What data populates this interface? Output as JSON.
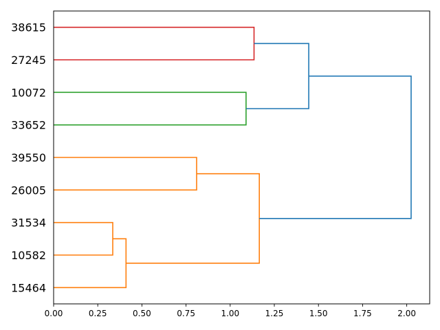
{
  "chart_data": {
    "type": "dendrogram",
    "orientation": "horizontal",
    "title": "",
    "xlabel": "",
    "ylabel": "",
    "xlim": [
      0,
      2.13
    ],
    "xticks": [
      "0.00",
      "0.25",
      "0.50",
      "0.75",
      "1.00",
      "1.25",
      "1.50",
      "1.75",
      "2.00"
    ],
    "grid": false,
    "leaves": [
      "38615",
      "27245",
      "10072",
      "33652",
      "39550",
      "26005",
      "31534",
      "10582",
      "15464"
    ],
    "merges": [
      {
        "left": "31534",
        "right": "10582",
        "distance": 0.335,
        "color": "#ff7f0e"
      },
      {
        "left": "31534+10582",
        "right": "15464",
        "distance": 0.41,
        "color": "#ff7f0e"
      },
      {
        "left": "39550",
        "right": "26005",
        "distance": 0.81,
        "color": "#ff7f0e"
      },
      {
        "left": "39550+26005",
        "right": "31534+10582+15464",
        "distance": 1.165,
        "color": "#ff7f0e"
      },
      {
        "left": "10072",
        "right": "33652",
        "distance": 1.09,
        "color": "#2ca02c"
      },
      {
        "left": "38615",
        "right": "27245",
        "distance": 1.135,
        "color": "#d62728"
      },
      {
        "left": "38615+27245",
        "right": "10072+33652",
        "distance": 1.445,
        "color": "#1f77b4"
      },
      {
        "left": "38615+27245+10072+33652",
        "right": "39550+26005+31534+10582+15464",
        "distance": 2.025,
        "color": "#1f77b4"
      }
    ],
    "colors": {
      "red": "#d62728",
      "green": "#2ca02c",
      "orange": "#ff7f0e",
      "blue": "#1f77b4"
    }
  }
}
